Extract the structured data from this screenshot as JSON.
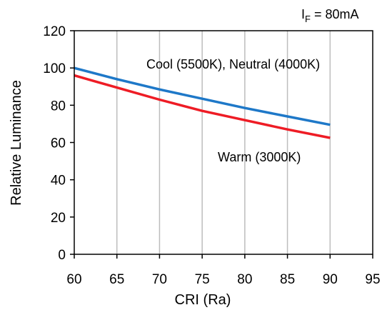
{
  "chart_data": {
    "type": "line",
    "condition": {
      "main": "I",
      "sub": "F",
      "rest": " = 80mA"
    },
    "xlabel": "CRI (Ra)",
    "ylabel": "Relative Luminance",
    "xlim": [
      60,
      95
    ],
    "ylim": [
      0,
      120
    ],
    "xticks": [
      60,
      65,
      70,
      75,
      80,
      85,
      90,
      95
    ],
    "yticks": [
      0,
      20,
      40,
      60,
      80,
      100,
      120
    ],
    "grid": {
      "x": true,
      "y": false
    },
    "series": [
      {
        "name": "Cool (5500K), Neutral (4000K)",
        "color": "#1E78C8",
        "x": [
          60,
          65,
          70,
          75,
          80,
          85,
          90
        ],
        "y": [
          100,
          94,
          88.5,
          83.5,
          78.5,
          74,
          69.5
        ]
      },
      {
        "name": "Warm (3000K)",
        "color": "#EE1C25",
        "x": [
          60,
          65,
          70,
          75,
          80,
          85,
          90
        ],
        "y": [
          96,
          89.5,
          83,
          77,
          72,
          67,
          62.5
        ]
      }
    ]
  }
}
